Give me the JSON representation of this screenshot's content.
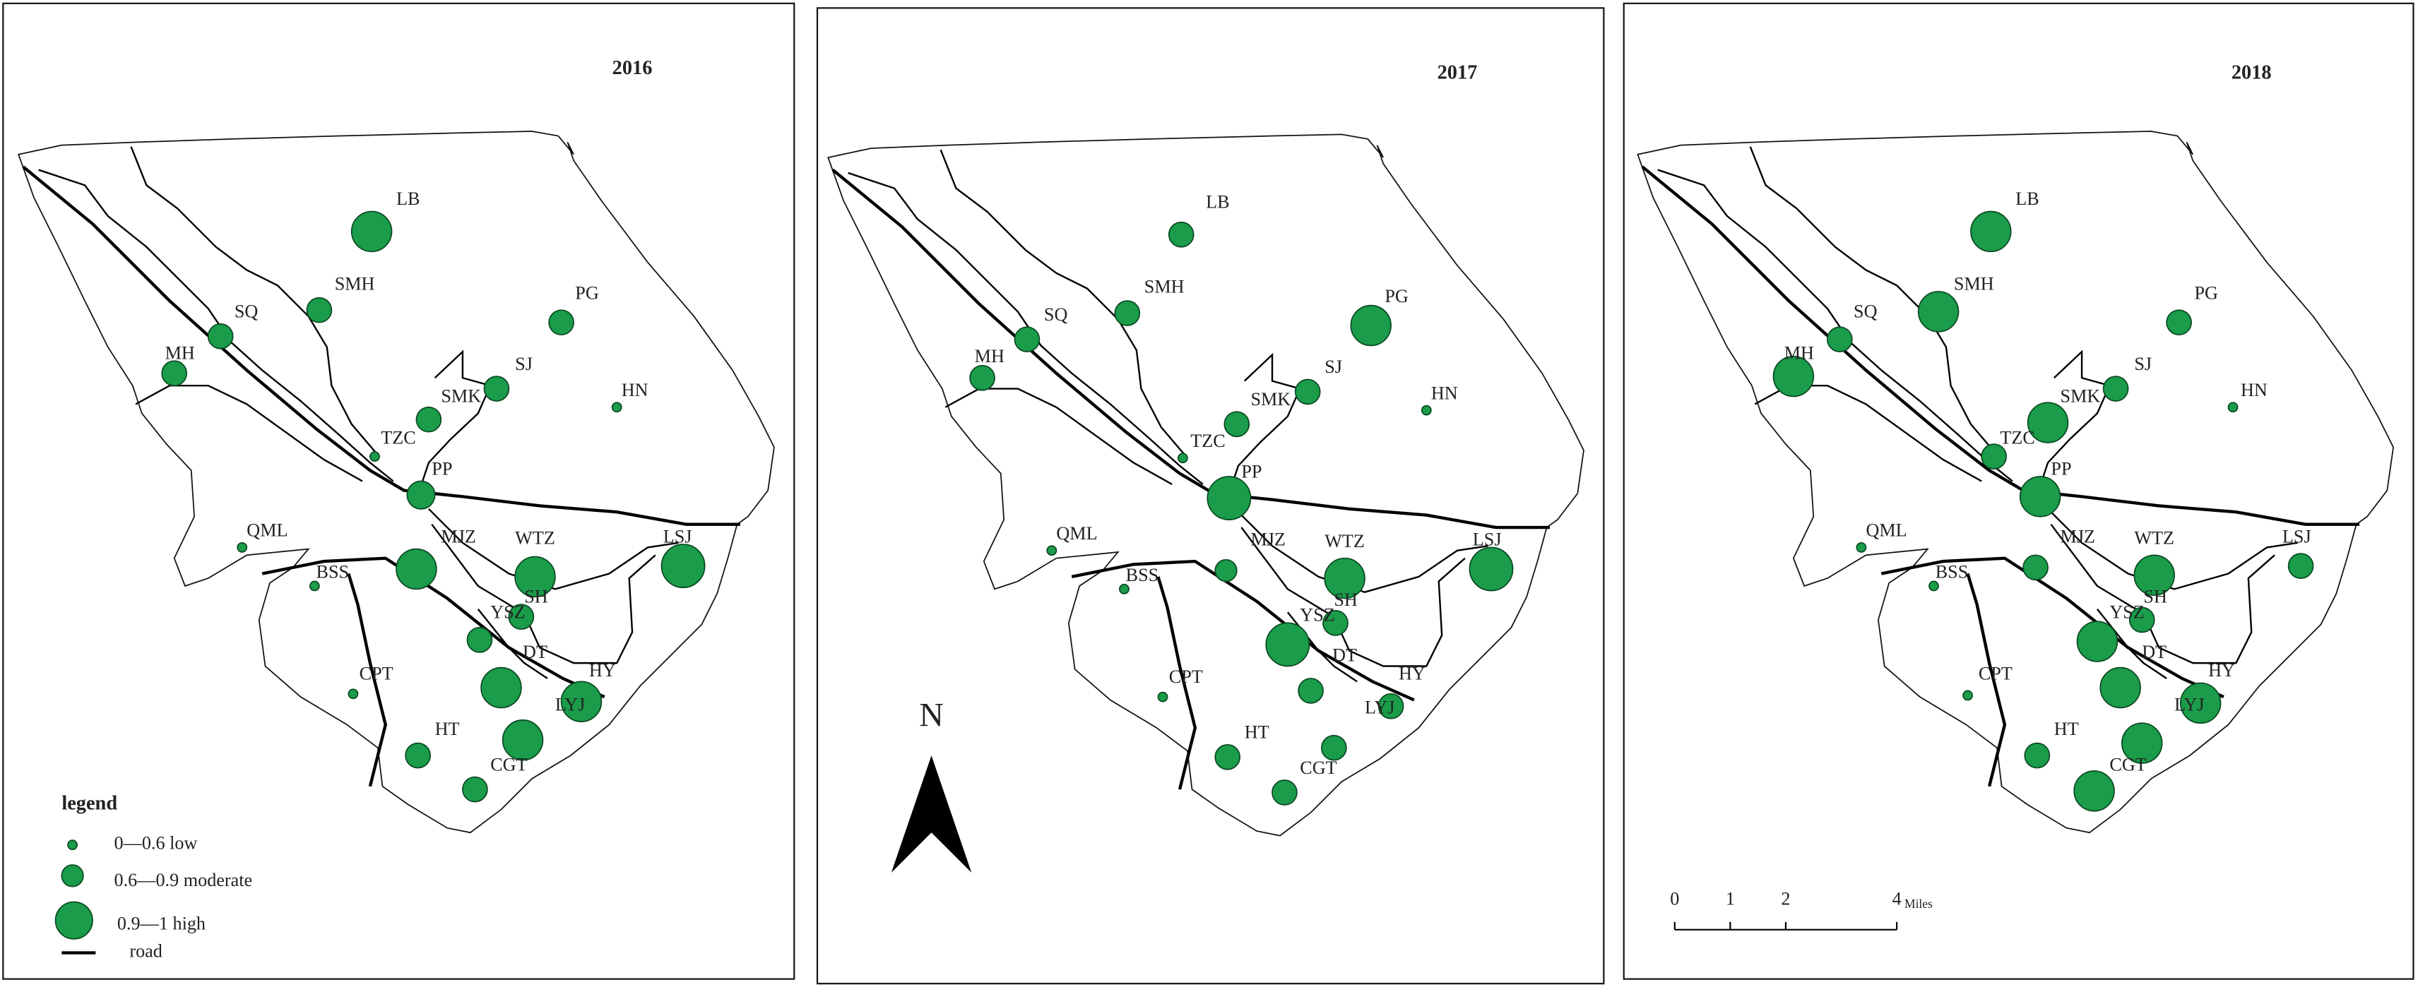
{
  "maps": [
    {
      "year": "2016"
    },
    {
      "year": "2017"
    },
    {
      "year": "2018"
    }
  ],
  "sites": [
    "LB",
    "SMH",
    "SQ",
    "MH",
    "PG",
    "SJ",
    "SMK",
    "HN",
    "TZC",
    "PP",
    "QML",
    "MJZ",
    "WTZ",
    "SH",
    "LSJ",
    "BSS",
    "YSZ",
    "DT",
    "HY",
    "LYJ",
    "CPT",
    "HT",
    "CGT"
  ],
  "legend": {
    "title": "legend",
    "items": [
      "0—0.6  low",
      "0.6—0.9 moderate",
      "0.9—1 high",
      "road"
    ]
  },
  "north": "N",
  "scale_bar": {
    "ticks": [
      0,
      1,
      2,
      4
    ],
    "unit": "Miles"
  }
}
